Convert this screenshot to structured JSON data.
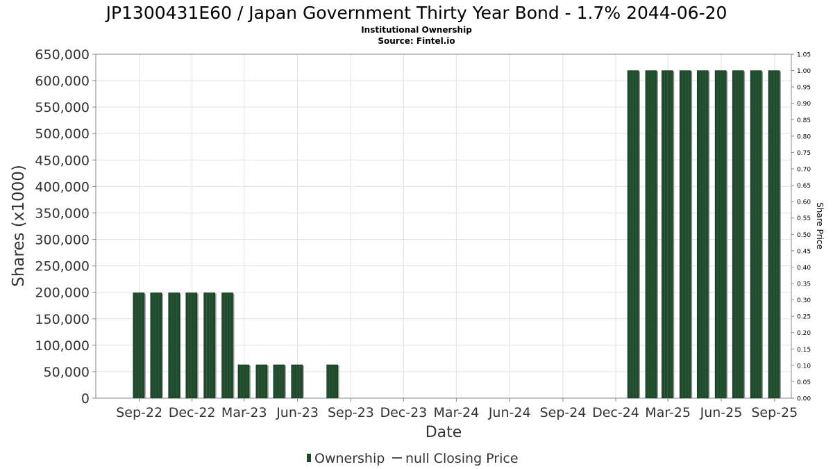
{
  "chart_data": {
    "type": "bar",
    "title": "JP1300431E60 / Japan Government Thirty Year Bond - 1.7% 2044-06-20",
    "subtitle": "Institutional Ownership",
    "source": "Source: Fintel.io",
    "xlabel": "Date",
    "ylabel": "Shares (x1000)",
    "y2label": "Share Price",
    "ylim": [
      0,
      650000
    ],
    "y2lim": [
      0,
      1.05
    ],
    "yticks": [
      "0",
      "50,000",
      "100,000",
      "150,000",
      "200,000",
      "250,000",
      "300,000",
      "350,000",
      "400,000",
      "450,000",
      "500,000",
      "550,000",
      "600,000",
      "650,000"
    ],
    "y2ticks": [
      "0.00",
      "0.05",
      "0.10",
      "0.15",
      "0.20",
      "0.25",
      "0.30",
      "0.35",
      "0.40",
      "0.45",
      "0.50",
      "0.55",
      "0.60",
      "0.65",
      "0.70",
      "0.75",
      "0.80",
      "0.85",
      "0.90",
      "0.95",
      "1.00",
      "1.05"
    ],
    "xticks": [
      "Sep-22",
      "Dec-22",
      "Mar-23",
      "Jun-23",
      "Sep-23",
      "Dec-23",
      "Mar-24",
      "Jun-24",
      "Sep-24",
      "Dec-24",
      "Mar-25",
      "Jun-25",
      "Sep-25"
    ],
    "xtick_dates": [
      "2022-09-01",
      "2022-12-01",
      "2023-03-01",
      "2023-06-01",
      "2023-09-01",
      "2023-12-01",
      "2024-03-01",
      "2024-06-01",
      "2024-09-01",
      "2024-12-01",
      "2025-03-01",
      "2025-06-01",
      "2025-09-01"
    ],
    "xlim": [
      "2022-06-18",
      "2025-09-30"
    ],
    "grid": true,
    "legend_position": "bottom-center",
    "series": [
      {
        "name": "Ownership",
        "color": "#1f4a2b",
        "points": [
          {
            "date": "2022-08-31",
            "value": 199000
          },
          {
            "date": "2022-09-30",
            "value": 199000
          },
          {
            "date": "2022-10-31",
            "value": 199000
          },
          {
            "date": "2022-11-30",
            "value": 199000
          },
          {
            "date": "2022-12-31",
            "value": 199000
          },
          {
            "date": "2023-01-31",
            "value": 199000
          },
          {
            "date": "2023-02-28",
            "value": 63000
          },
          {
            "date": "2023-03-31",
            "value": 63000
          },
          {
            "date": "2023-04-30",
            "value": 63000
          },
          {
            "date": "2023-05-31",
            "value": 63000
          },
          {
            "date": "2023-07-31",
            "value": 63000
          },
          {
            "date": "2024-12-31",
            "value": 619000
          },
          {
            "date": "2025-01-31",
            "value": 619000
          },
          {
            "date": "2025-02-28",
            "value": 619000
          },
          {
            "date": "2025-03-31",
            "value": 619000
          },
          {
            "date": "2025-04-30",
            "value": 619000
          },
          {
            "date": "2025-05-31",
            "value": 619000
          },
          {
            "date": "2025-06-30",
            "value": 619000
          },
          {
            "date": "2025-07-31",
            "value": 619000
          },
          {
            "date": "2025-08-31",
            "value": 619000
          }
        ]
      }
    ],
    "legend": [
      {
        "label": "Ownership",
        "marker": "bar",
        "color": "#1f4a2b"
      },
      {
        "label": "null Closing Price",
        "marker": "line",
        "color": "#555555"
      }
    ]
  }
}
